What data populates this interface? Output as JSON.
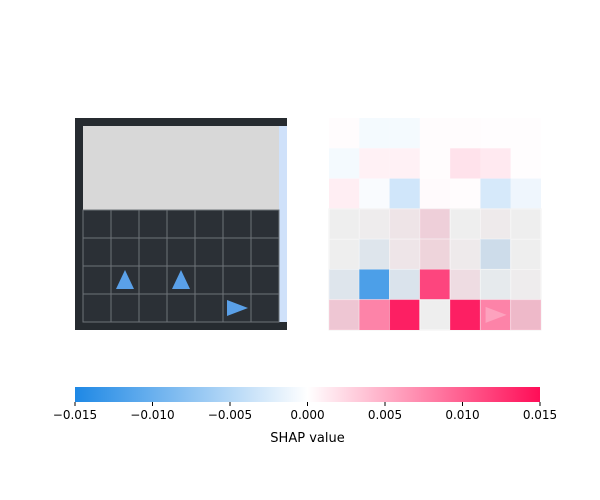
{
  "chart_data": {
    "type": "heatmap",
    "title": "",
    "panels": [
      {
        "name": "observation",
        "grid_rows": 7,
        "grid_cols": 7,
        "agents": [
          {
            "row": 5,
            "col": 1,
            "direction": "up",
            "color": "#5aa0e8"
          },
          {
            "row": 5,
            "col": 3,
            "direction": "up",
            "color": "#5aa0e8"
          },
          {
            "row": 6,
            "col": 5,
            "direction": "right",
            "color": "#5aa0e8"
          }
        ]
      },
      {
        "name": "shap-overlay",
        "grid_rows": 7,
        "grid_cols": 7,
        "shap_values": [
          [
            0.0002,
            -0.0008,
            -0.0008,
            0.0002,
            0.0002,
            0.0001,
            0.0001
          ],
          [
            -0.0008,
            0.001,
            0.001,
            0.0002,
            0.002,
            0.0015,
            0.0001
          ],
          [
            0.0012,
            -0.0005,
            -0.0035,
            0.0003,
            0.0002,
            -0.003,
            -0.0012
          ],
          [
            0.0,
            0.0002,
            0.0012,
            0.0035,
            0.0,
            0.0005,
            0.0
          ],
          [
            0.0,
            -0.002,
            0.001,
            0.003,
            0.0005,
            -0.004,
            0.0
          ],
          [
            -0.002,
            -0.0125,
            -0.0025,
            0.012,
            0.002,
            -0.001,
            0.0002
          ],
          [
            0.0045,
            0.008,
            0.0145,
            0.0,
            0.0145,
            0.008,
            0.006
          ]
        ]
      }
    ],
    "colorbar": {
      "label": "SHAP value",
      "vmin": -0.015,
      "vmax": 0.015,
      "ticks": [
        -0.015,
        -0.01,
        -0.005,
        0.0,
        0.005,
        0.01,
        0.015
      ],
      "tick_labels": [
        "−0.015",
        "−0.010",
        "−0.005",
        "0.000",
        "0.005",
        "0.010",
        "0.015"
      ],
      "color_negative": "#1e88e5",
      "color_zero": "#ffffff",
      "color_positive": "#ff0d57"
    }
  }
}
